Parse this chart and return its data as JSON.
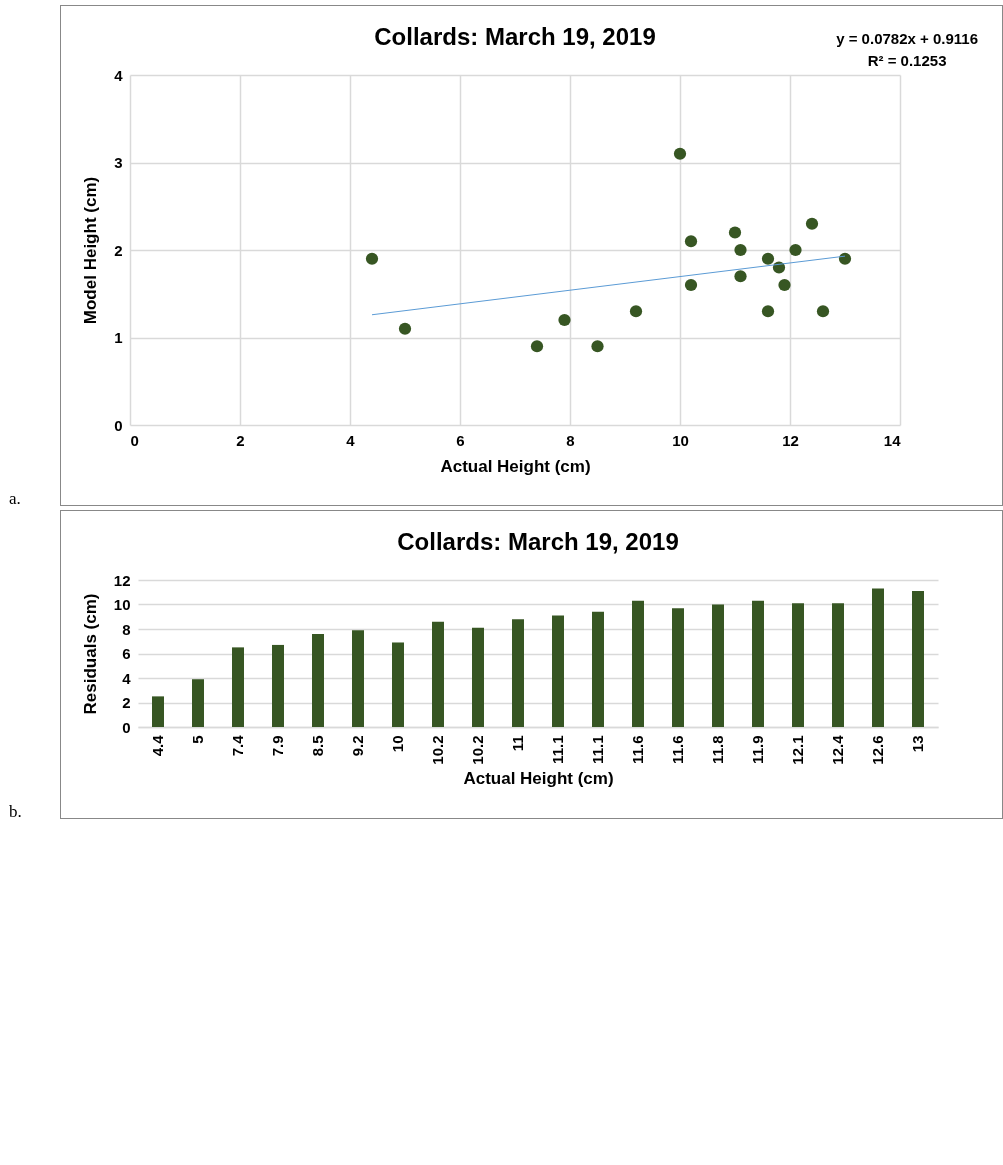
{
  "chart_data": [
    {
      "type": "scatter",
      "title": "Collards: March 19, 2019",
      "xlabel": "Actual Height (cm)",
      "ylabel": "Model Height (cm)",
      "series": [
        {
          "type": "scatter",
          "marker": "circle",
          "color": "#375623",
          "x": [
            4.4,
            5,
            7.4,
            7.9,
            8.5,
            9.2,
            10,
            10.2,
            10.2,
            11,
            11.1,
            11.1,
            11.6,
            11.6,
            11.8,
            11.9,
            12.1,
            12.4,
            12.6,
            13
          ],
          "values": [
            1.9,
            1.1,
            0.9,
            1.2,
            0.9,
            1.3,
            3.1,
            2.1,
            1.6,
            2.2,
            2.0,
            1.7,
            1.9,
            1.3,
            1.8,
            1.6,
            2.0,
            2.3,
            1.3,
            1.9
          ]
        },
        {
          "type": "line",
          "color": "#5b9bd5",
          "x": [
            4.4,
            13
          ],
          "values": [
            1.26,
            1.93
          ]
        }
      ],
      "xlim": [
        0,
        14
      ],
      "xticks": [
        0,
        2,
        4,
        6,
        8,
        10,
        12,
        14
      ],
      "ylim": [
        0,
        4
      ],
      "yticks": [
        0,
        1,
        2,
        3,
        4
      ],
      "grid": true,
      "annotations": [
        "y = 0.0782x + 0.9116",
        "R² = 0.1253",
        "a."
      ]
    },
    {
      "type": "bar",
      "title": "Collards: March 19, 2019",
      "xlabel": "Actual Height (cm)",
      "ylabel": "Residuals (cm)",
      "categories": [
        "4.4",
        "5",
        "7.4",
        "7.9",
        "8.5",
        "9.2",
        "10",
        "10.2",
        "10.2",
        "11",
        "11.1",
        "11.1",
        "11.6",
        "11.6",
        "11.8",
        "11.9",
        "12.1",
        "12.4",
        "12.6",
        "13"
      ],
      "series": [
        {
          "color": "#375623",
          "values": [
            2.5,
            3.9,
            6.5,
            6.7,
            7.6,
            7.9,
            6.9,
            8.6,
            8.1,
            8.8,
            9.1,
            9.4,
            10.3,
            9.7,
            10.0,
            10.3,
            10.1,
            10.1,
            11.3,
            11.1
          ]
        }
      ],
      "ylim": [
        0,
        12
      ],
      "yticks": [
        0,
        2,
        4,
        6,
        8,
        10,
        12
      ],
      "grid": "y",
      "annotations": [
        "b."
      ]
    }
  ]
}
